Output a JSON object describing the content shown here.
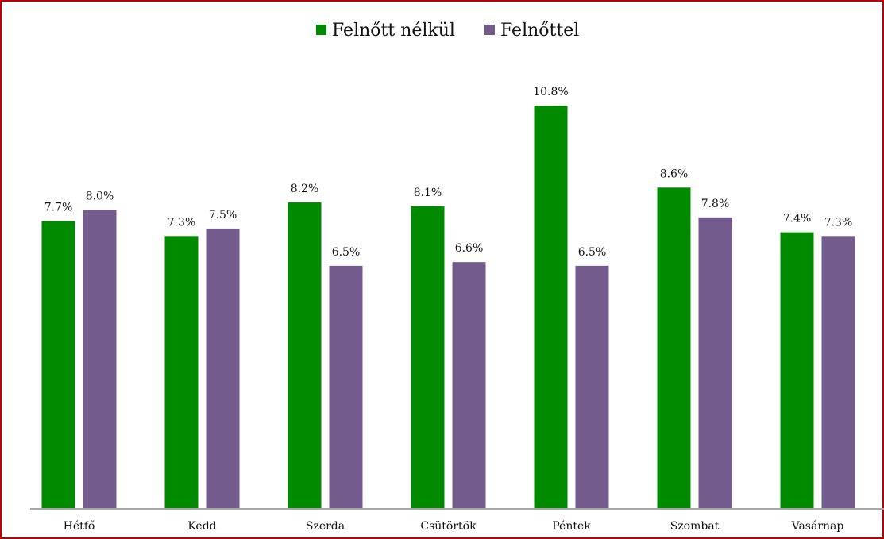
{
  "chart_data": {
    "type": "bar",
    "categories": [
      "Hétfő",
      "Kedd",
      "Szerda",
      "Csütörtök",
      "Péntek",
      "Szombat",
      "Vasárnap"
    ],
    "series": [
      {
        "name": "Felnőtt nélkül",
        "color": "#008a00",
        "values": [
          7.7,
          7.3,
          8.2,
          8.1,
          10.8,
          8.6,
          7.4
        ],
        "value_labels": [
          "7.7%",
          "7.3%",
          "8.2%",
          "8.1%",
          "10.8%",
          "8.6%",
          "7.4%"
        ]
      },
      {
        "name": "Felnőttel",
        "color": "#735c8d",
        "values": [
          8.0,
          7.5,
          6.5,
          6.6,
          6.5,
          7.8,
          7.3
        ],
        "value_labels": [
          "8.0%",
          "7.5%",
          "6.5%",
          "6.6%",
          "6.5%",
          "7.8%",
          "7.3%"
        ]
      }
    ],
    "legend": "top"
  }
}
